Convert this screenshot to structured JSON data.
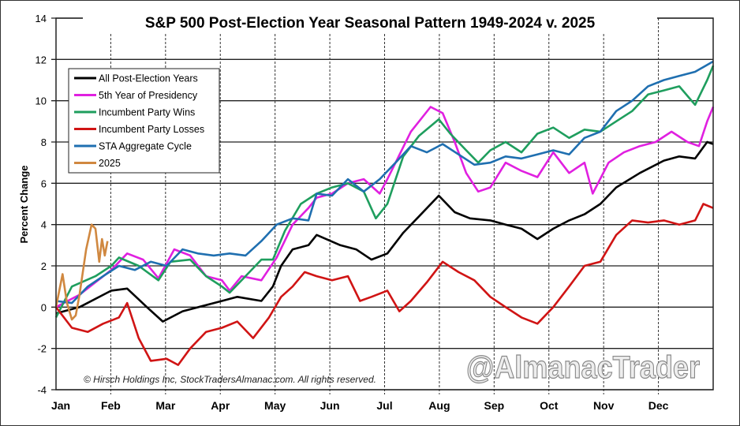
{
  "chart_data": {
    "type": "line",
    "title": "S&P 500 Post-Election Year Seasonal Pattern 1949-2024 v. 2025",
    "ylabel": "Percent Change",
    "xlabel": "",
    "ylim": [
      -4,
      14
    ],
    "yticks": [
      -4,
      -2,
      0,
      2,
      4,
      6,
      8,
      10,
      12,
      14
    ],
    "xlim_months": [
      0,
      12
    ],
    "xtick_labels": [
      "Jan",
      "Feb",
      "Mar",
      "Apr",
      "May",
      "Jun",
      "Jul",
      "Aug",
      "Sep",
      "Oct",
      "Nov",
      "Dec"
    ],
    "grid": true,
    "legend_position": "top-left",
    "copyright": "© Hirsch Holdings Inc, StockTradersAlmanac.com. All rights reserved.",
    "watermark": "@AlmanacTrader",
    "series": [
      {
        "name": "All Post-Election Years",
        "color": "#000000",
        "points": [
          [
            0,
            -0.3
          ],
          [
            0.43,
            0
          ],
          [
            1.01,
            0.8
          ],
          [
            1.3,
            0.9
          ],
          [
            1.66,
            0
          ],
          [
            1.95,
            -0.7
          ],
          [
            2.31,
            -0.2
          ],
          [
            2.74,
            0.1
          ],
          [
            3.03,
            0.3
          ],
          [
            3.31,
            0.5
          ],
          [
            3.75,
            0.3
          ],
          [
            3.96,
            1.0
          ],
          [
            4.11,
            2.0
          ],
          [
            4.32,
            2.8
          ],
          [
            4.61,
            3.0
          ],
          [
            4.76,
            3.5
          ],
          [
            5.19,
            3.0
          ],
          [
            5.48,
            2.8
          ],
          [
            5.76,
            2.3
          ],
          [
            6.05,
            2.6
          ],
          [
            6.34,
            3.6
          ],
          [
            6.63,
            4.4
          ],
          [
            6.99,
            5.4
          ],
          [
            7.28,
            4.6
          ],
          [
            7.56,
            4.3
          ],
          [
            7.93,
            4.2
          ],
          [
            8.21,
            4.0
          ],
          [
            8.5,
            3.8
          ],
          [
            8.79,
            3.3
          ],
          [
            9.08,
            3.8
          ],
          [
            9.37,
            4.2
          ],
          [
            9.65,
            4.5
          ],
          [
            9.94,
            5.0
          ],
          [
            10.23,
            5.8
          ],
          [
            10.66,
            6.5
          ],
          [
            11.1,
            7.1
          ],
          [
            11.38,
            7.3
          ],
          [
            11.67,
            7.2
          ],
          [
            11.89,
            8.0
          ],
          [
            12,
            7.9
          ]
        ]
      },
      {
        "name": "5th Year of Presidency",
        "color": "#e020e0",
        "points": [
          [
            0,
            0
          ],
          [
            0.43,
            0.6
          ],
          [
            1.01,
            1.8
          ],
          [
            1.3,
            2.6
          ],
          [
            1.59,
            2.3
          ],
          [
            1.87,
            1.4
          ],
          [
            2.16,
            2.8
          ],
          [
            2.45,
            2.5
          ],
          [
            2.74,
            1.5
          ],
          [
            3.03,
            1.3
          ],
          [
            3.17,
            0.8
          ],
          [
            3.39,
            1.5
          ],
          [
            3.75,
            1.3
          ],
          [
            4.03,
            2.4
          ],
          [
            4.32,
            4.0
          ],
          [
            4.61,
            4.8
          ],
          [
            4.76,
            5.3
          ],
          [
            5.04,
            5.5
          ],
          [
            5.33,
            6.0
          ],
          [
            5.62,
            6.2
          ],
          [
            5.91,
            5.5
          ],
          [
            6.05,
            6.2
          ],
          [
            6.2,
            7.0
          ],
          [
            6.48,
            8.5
          ],
          [
            6.84,
            9.7
          ],
          [
            7.06,
            9.4
          ],
          [
            7.28,
            8.0
          ],
          [
            7.49,
            6.5
          ],
          [
            7.71,
            5.6
          ],
          [
            7.93,
            5.8
          ],
          [
            8.21,
            7.0
          ],
          [
            8.5,
            6.6
          ],
          [
            8.79,
            6.3
          ],
          [
            9.08,
            7.5
          ],
          [
            9.37,
            6.5
          ],
          [
            9.65,
            7.0
          ],
          [
            9.8,
            5.5
          ],
          [
            10.09,
            7.0
          ],
          [
            10.37,
            7.5
          ],
          [
            10.66,
            7.8
          ],
          [
            10.95,
            8.0
          ],
          [
            11.24,
            8.5
          ],
          [
            11.53,
            8.0
          ],
          [
            11.74,
            7.8
          ],
          [
            11.89,
            9.0
          ],
          [
            12,
            9.7
          ]
        ]
      },
      {
        "name": "Incumbent Party Wins",
        "color": "#1f9e5e",
        "points": [
          [
            0,
            -0.5
          ],
          [
            0.29,
            1.0
          ],
          [
            0.72,
            1.5
          ],
          [
            1.01,
            2.0
          ],
          [
            1.15,
            2.4
          ],
          [
            1.51,
            2.0
          ],
          [
            1.87,
            1.3
          ],
          [
            2.09,
            2.2
          ],
          [
            2.45,
            2.3
          ],
          [
            2.74,
            1.5
          ],
          [
            3.03,
            1.0
          ],
          [
            3.17,
            0.7
          ],
          [
            3.46,
            1.5
          ],
          [
            3.75,
            2.3
          ],
          [
            3.96,
            2.3
          ],
          [
            4.18,
            3.7
          ],
          [
            4.47,
            5.0
          ],
          [
            4.76,
            5.5
          ],
          [
            5.04,
            5.8
          ],
          [
            5.33,
            6.0
          ],
          [
            5.62,
            5.6
          ],
          [
            5.84,
            4.3
          ],
          [
            6.05,
            5.0
          ],
          [
            6.34,
            7.3
          ],
          [
            6.63,
            8.3
          ],
          [
            6.99,
            9.1
          ],
          [
            7.2,
            8.4
          ],
          [
            7.49,
            7.6
          ],
          [
            7.71,
            7.0
          ],
          [
            7.93,
            7.6
          ],
          [
            8.21,
            8.0
          ],
          [
            8.5,
            7.5
          ],
          [
            8.79,
            8.4
          ],
          [
            9.08,
            8.7
          ],
          [
            9.37,
            8.2
          ],
          [
            9.65,
            8.6
          ],
          [
            9.94,
            8.5
          ],
          [
            10.23,
            9.0
          ],
          [
            10.52,
            9.5
          ],
          [
            10.81,
            10.3
          ],
          [
            11.1,
            10.5
          ],
          [
            11.38,
            10.7
          ],
          [
            11.67,
            9.8
          ],
          [
            11.89,
            11.0
          ],
          [
            12,
            11.7
          ]
        ]
      },
      {
        "name": "Incumbent Party Losses",
        "color": "#d01414",
        "points": [
          [
            0,
            0
          ],
          [
            0.29,
            -1.0
          ],
          [
            0.58,
            -1.2
          ],
          [
            0.86,
            -0.8
          ],
          [
            1.15,
            -0.5
          ],
          [
            1.3,
            0.2
          ],
          [
            1.51,
            -1.5
          ],
          [
            1.73,
            -2.6
          ],
          [
            2.02,
            -2.5
          ],
          [
            2.23,
            -2.8
          ],
          [
            2.45,
            -2.0
          ],
          [
            2.74,
            -1.2
          ],
          [
            3.03,
            -1.0
          ],
          [
            3.31,
            -0.7
          ],
          [
            3.6,
            -1.5
          ],
          [
            3.89,
            -0.5
          ],
          [
            4.11,
            0.5
          ],
          [
            4.32,
            1.0
          ],
          [
            4.54,
            1.7
          ],
          [
            4.76,
            1.5
          ],
          [
            5.04,
            1.3
          ],
          [
            5.33,
            1.5
          ],
          [
            5.55,
            0.3
          ],
          [
            5.76,
            0.5
          ],
          [
            6.05,
            0.8
          ],
          [
            6.27,
            -0.2
          ],
          [
            6.48,
            0.3
          ],
          [
            6.77,
            1.2
          ],
          [
            7.06,
            2.2
          ],
          [
            7.35,
            1.7
          ],
          [
            7.64,
            1.3
          ],
          [
            7.93,
            0.5
          ],
          [
            8.21,
            0
          ],
          [
            8.5,
            -0.5
          ],
          [
            8.79,
            -0.8
          ],
          [
            9.08,
            0
          ],
          [
            9.37,
            1.0
          ],
          [
            9.65,
            2.0
          ],
          [
            9.94,
            2.2
          ],
          [
            10.23,
            3.5
          ],
          [
            10.52,
            4.2
          ],
          [
            10.81,
            4.1
          ],
          [
            11.1,
            4.2
          ],
          [
            11.38,
            4.0
          ],
          [
            11.67,
            4.2
          ],
          [
            11.82,
            5.0
          ],
          [
            12,
            4.8
          ]
        ]
      },
      {
        "name": "STA Aggregate Cycle",
        "color": "#1f6fb0",
        "points": [
          [
            0,
            0.3
          ],
          [
            0.29,
            0.2
          ],
          [
            0.58,
            1.0
          ],
          [
            0.86,
            1.5
          ],
          [
            1.15,
            2.0
          ],
          [
            1.44,
            1.8
          ],
          [
            1.73,
            2.2
          ],
          [
            2.02,
            2.0
          ],
          [
            2.31,
            2.8
          ],
          [
            2.59,
            2.6
          ],
          [
            2.88,
            2.5
          ],
          [
            3.17,
            2.6
          ],
          [
            3.46,
            2.5
          ],
          [
            3.75,
            3.2
          ],
          [
            4.03,
            4.0
          ],
          [
            4.32,
            4.3
          ],
          [
            4.61,
            4.2
          ],
          [
            4.76,
            5.5
          ],
          [
            5.04,
            5.4
          ],
          [
            5.33,
            6.2
          ],
          [
            5.62,
            5.6
          ],
          [
            5.91,
            6.2
          ],
          [
            6.2,
            7.0
          ],
          [
            6.48,
            7.8
          ],
          [
            6.77,
            7.5
          ],
          [
            7.06,
            7.9
          ],
          [
            7.35,
            7.4
          ],
          [
            7.64,
            6.9
          ],
          [
            7.93,
            7.0
          ],
          [
            8.21,
            7.3
          ],
          [
            8.5,
            7.2
          ],
          [
            8.79,
            7.4
          ],
          [
            9.08,
            7.6
          ],
          [
            9.37,
            7.4
          ],
          [
            9.65,
            8.2
          ],
          [
            9.94,
            8.5
          ],
          [
            10.23,
            9.5
          ],
          [
            10.52,
            10.0
          ],
          [
            10.81,
            10.7
          ],
          [
            11.1,
            11.0
          ],
          [
            11.38,
            11.2
          ],
          [
            11.67,
            11.4
          ],
          [
            12,
            11.9
          ]
        ]
      },
      {
        "name": "2025",
        "color": "#d08840",
        "points": [
          [
            0,
            0
          ],
          [
            0.12,
            1.6
          ],
          [
            0.2,
            0.2
          ],
          [
            0.29,
            -0.6
          ],
          [
            0.36,
            -0.4
          ],
          [
            0.43,
            0.6
          ],
          [
            0.55,
            2.8
          ],
          [
            0.65,
            4.0
          ],
          [
            0.72,
            3.8
          ],
          [
            0.79,
            2.2
          ],
          [
            0.84,
            3.3
          ],
          [
            0.89,
            2.5
          ],
          [
            0.94,
            3.2
          ]
        ]
      }
    ]
  }
}
